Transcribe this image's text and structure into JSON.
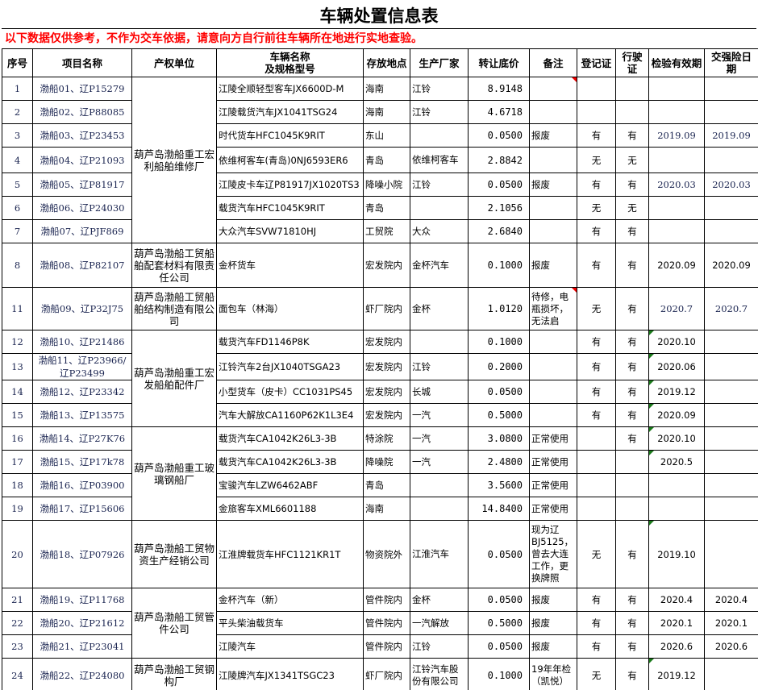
{
  "title": "车辆处置信息表",
  "notice": "以下数据仅供参考，不作为交车依据，请意向方自行前往车辆所在地进行实地查验。",
  "headers": [
    "序号",
    "项目名称",
    "产权单位",
    "车辆名称\n及规格型号",
    "存放地点",
    "生产厂家",
    "转让底价",
    "备注",
    "登记证",
    "行驶证",
    "检验有效期",
    "交强险日期"
  ],
  "colors": {
    "notice": "#ff0000",
    "comment_red": "#ee0000",
    "comment_green": "#1a7a1a"
  },
  "groups": [
    {
      "owner": "葫芦岛渤船重工宏利船舶维修厂",
      "rows": [
        {
          "no": "1",
          "project": "渤船01、辽P15279",
          "vehicle": "江陵全顺轻型客车JX6600D-M",
          "location": "海南",
          "maker": "江铃",
          "price": "8.9148",
          "note": "",
          "reg": "",
          "drive": "",
          "inspect": "",
          "insure": "",
          "note_comment": true
        },
        {
          "no": "2",
          "project": "渤船02、辽P88085",
          "vehicle": "江陵载货汽车JX1041TSG24",
          "location": "海南",
          "maker": "江铃",
          "price": "4.6718",
          "note": "",
          "reg": "",
          "drive": "",
          "inspect": "",
          "insure": ""
        },
        {
          "no": "3",
          "project": "渤船03、辽P23453",
          "vehicle": "时代货车HFC1045K9RIT",
          "location": "东山",
          "maker": "",
          "price": "0.0500",
          "note": "报废",
          "reg": "有",
          "drive": "有",
          "inspect": "2019.09",
          "insure": "2019.09"
        },
        {
          "no": "4",
          "project": "渤船04、辽P21093",
          "vehicle": "依维柯客车(青岛)0NJ6593ER6",
          "location": "青岛",
          "maker": "依维柯客车",
          "price": "2.8842",
          "note": "",
          "reg": "无",
          "drive": "无",
          "inspect": "",
          "insure": ""
        },
        {
          "no": "5",
          "project": "渤船05、辽P81917",
          "vehicle": "江陵皮卡车辽P81917JX1020TS3",
          "location": "降噪小院",
          "maker": "江铃",
          "price": "0.0500",
          "note": "报废",
          "reg": "有",
          "drive": "有",
          "inspect": "2020.03",
          "insure": "2020.03"
        },
        {
          "no": "6",
          "project": "渤船06、辽P24030",
          "vehicle": "载货汽车HFC1045K9RIT",
          "location": "青岛",
          "maker": "",
          "price": "2.1056",
          "note": "",
          "reg": "无",
          "drive": "无",
          "inspect": "",
          "insure": ""
        },
        {
          "no": "7",
          "project": "渤船07、辽PJF869",
          "vehicle": "大众汽车SVW71810HJ",
          "location": "工贸院",
          "maker": "大众",
          "price": "2.6840",
          "note": "",
          "reg": "有",
          "drive": "有",
          "inspect": "",
          "insure": ""
        }
      ]
    },
    {
      "owner": "葫芦岛渤船工贸船舶配套材料有限责任公司",
      "rows": [
        {
          "no": "8",
          "project": "渤船08、辽P82107",
          "vehicle": "金杯货车",
          "location": "宏发院内",
          "maker": "金杯汽车",
          "price": "0.1000",
          "note": "报废",
          "reg": "有",
          "drive": "有",
          "inspect": "2020.09",
          "insure": "2020.09"
        }
      ]
    },
    {
      "owner": "葫芦岛渤船工贸船舶结构制造有限公司",
      "rows": [
        {
          "no": "11",
          "project": "渤船09、辽P32J75",
          "vehicle": "面包车（林海）",
          "location": "虾厂院内",
          "maker": "金杯",
          "price": "1.0120",
          "note": "待修，电瓶损坏，无法启",
          "reg": "无",
          "drive": "有",
          "inspect": "2020.7",
          "insure": "2020.7",
          "note_comment": true
        }
      ]
    },
    {
      "owner": "葫芦岛渤船重工宏发船舶配件厂",
      "rows": [
        {
          "no": "12",
          "project": "渤船10、辽P21486",
          "vehicle": "载货汽车FD1146P8K",
          "location": "宏发院内",
          "maker": "",
          "price": "0.1000",
          "note": "",
          "reg": "有",
          "drive": "有",
          "inspect": "2020.10",
          "insure": "",
          "inspect_comment": true
        },
        {
          "no": "13",
          "project": "渤船11、辽P23966/辽P23499",
          "vehicle": "江铃汽车2台JX1040TSGA23",
          "location": "宏发院内",
          "maker": "江铃",
          "price": "0.2000",
          "note": "",
          "reg": "有",
          "drive": "有",
          "inspect": "2020.06",
          "insure": "",
          "inspect_comment": true
        },
        {
          "no": "14",
          "project": "渤船12、辽P23342",
          "vehicle": "小型货车（皮卡）CC1031PS45",
          "location": "宏发院内",
          "maker": "长城",
          "price": "0.0500",
          "note": "",
          "reg": "有",
          "drive": "有",
          "inspect": "2019.12",
          "insure": "",
          "inspect_comment": true
        },
        {
          "no": "15",
          "project": "渤船13、辽P13575",
          "vehicle": "汽车大解放CA1160P62K1L3E4",
          "location": "宏发院内",
          "maker": "一汽",
          "price": "0.5000",
          "note": "",
          "reg": "有",
          "drive": "有",
          "inspect": "2020.09",
          "insure": "",
          "inspect_comment": true
        }
      ]
    },
    {
      "owner": "葫芦岛渤船重工玻璃钢船厂",
      "rows": [
        {
          "no": "16",
          "project": "渤船14、辽P27K76",
          "vehicle": "载货汽车CA1042K26L3-3B",
          "location": "特涂院",
          "maker": "一汽",
          "price": "3.0800",
          "note": "正常使用",
          "reg": "",
          "drive": "有",
          "inspect": "2020.10",
          "insure": "",
          "inspect_comment": true
        },
        {
          "no": "17",
          "project": "渤船15、辽P17k78",
          "vehicle": "载货汽车CA1042K26L3-3B",
          "location": "降噪院",
          "maker": "一汽",
          "price": "2.4800",
          "note": "正常使用",
          "reg": "",
          "drive": "",
          "inspect": "2020.5",
          "insure": "",
          "inspect_comment": true
        },
        {
          "no": "18",
          "project": "渤船16、辽P03900",
          "vehicle": "宝骏汽车LZW6462ABF",
          "location": "青岛",
          "maker": "",
          "price": "3.5600",
          "note": "正常使用",
          "reg": "",
          "drive": "",
          "inspect": "",
          "insure": ""
        },
        {
          "no": "19",
          "project": "渤船17、辽P15606",
          "vehicle": "金旅客车XML6601188",
          "location": "海南",
          "maker": "",
          "price": "14.8400",
          "note": "正常使用",
          "reg": "",
          "drive": "",
          "inspect": "",
          "insure": ""
        }
      ]
    },
    {
      "owner": "葫芦岛渤船工贸物资生产经销公司",
      "rows": [
        {
          "no": "20",
          "project": "渤船18、辽P07926",
          "vehicle": "江淮牌载货车HFC1121KR1T",
          "location": "物资院外",
          "maker": "江淮汽车",
          "price": "0.0500",
          "note": "现为辽BJ5125，曾去大连工作，更换牌照",
          "reg": "无",
          "drive": "有",
          "inspect": "2019.10",
          "insure": "",
          "inspect_comment": true
        }
      ]
    },
    {
      "owner": "葫芦岛渤船工贸管件公司",
      "rows": [
        {
          "no": "21",
          "project": "渤船19、辽P11768",
          "vehicle": "金杯汽车（新）",
          "location": "管件院内",
          "maker": "金杯",
          "price": "0.0500",
          "note": "报废",
          "reg": "有",
          "drive": "有",
          "inspect": "2020.4",
          "insure": "2020.4"
        },
        {
          "no": "22",
          "project": "渤船20、辽P21612",
          "vehicle": "平头柴油载货车",
          "location": "管件院内",
          "maker": "一汽解放",
          "price": "0.5000",
          "note": "报废",
          "reg": "有",
          "drive": "有",
          "inspect": "2020.1",
          "insure": "2020.1"
        },
        {
          "no": "23",
          "project": "渤船21、辽P23041",
          "vehicle": "江陵汽车",
          "location": "管件院内",
          "maker": "江铃",
          "price": "0.0500",
          "note": "报废",
          "reg": "有",
          "drive": "有",
          "inspect": "2020.6",
          "insure": "2020.6"
        }
      ]
    },
    {
      "owner": "葫芦岛渤船工贸钢构厂",
      "rows": [
        {
          "no": "24",
          "project": "渤船22、辽P24080",
          "vehicle": "江陵牌汽车JX1341TSGC23",
          "location": "虾厂院内",
          "maker": "江铃汽车股份有限公司",
          "price": "0.1000",
          "note": "19年年检（凯悦）",
          "reg": "无",
          "drive": "有",
          "inspect": "2019.12",
          "insure": "",
          "inspect_comment": true
        }
      ]
    }
  ]
}
